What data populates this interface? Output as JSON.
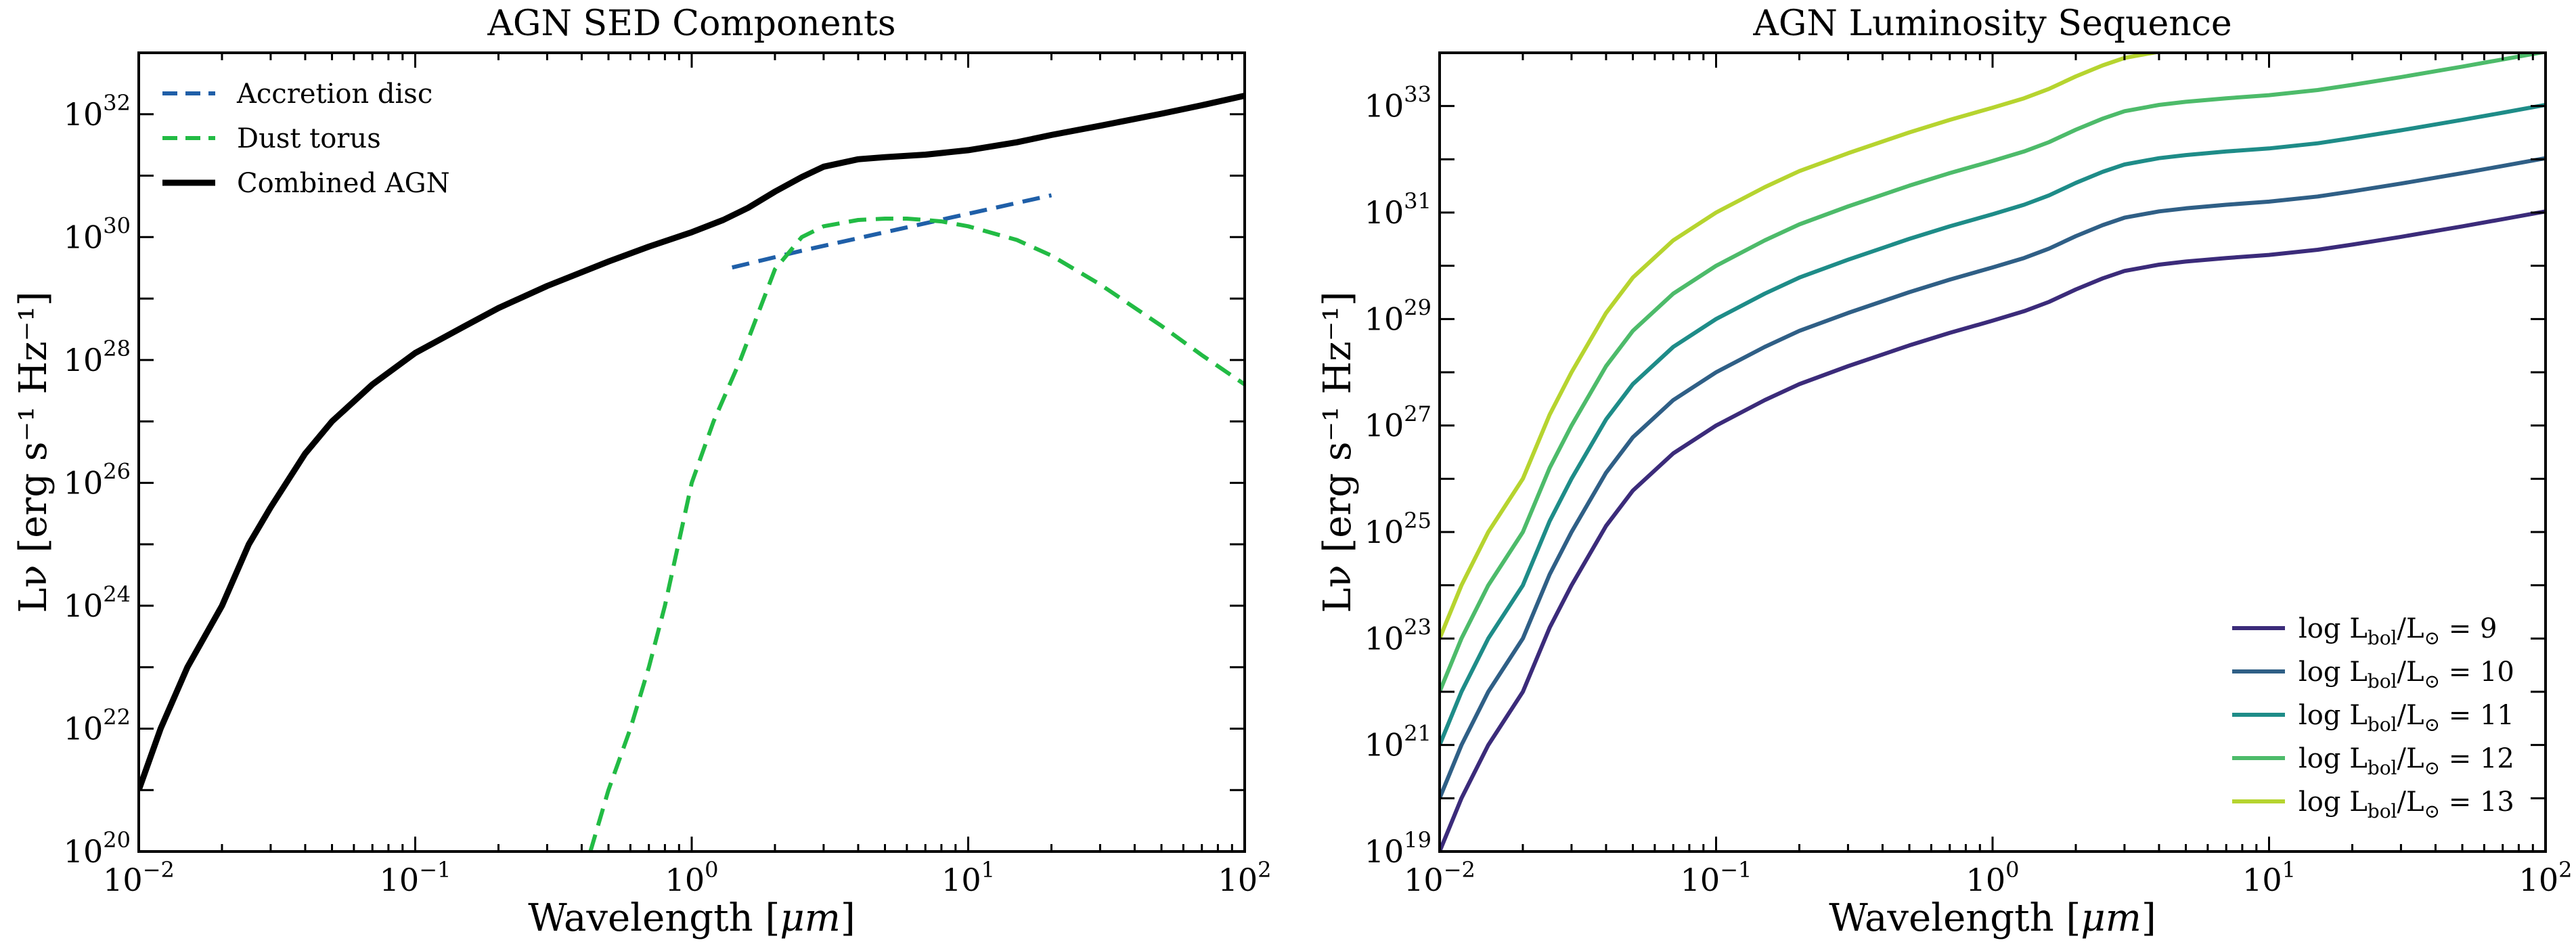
{
  "chart_data": [
    {
      "type": "line",
      "title": "AGN SED Components",
      "xlabel_text": "Wavelength [",
      "xlabel_unit": "μm",
      "xlabel_end": "]",
      "ylabel": "Lν [erg s⁻¹ Hz⁻¹]",
      "xscale": "log",
      "yscale": "log",
      "xlim": [
        0.01,
        100
      ],
      "ylim": [
        1e+20,
        1e+33
      ],
      "x_ticks": [
        {
          "base": "10",
          "exp": "−2"
        },
        {
          "base": "10",
          "exp": "−1"
        },
        {
          "base": "10",
          "exp": "0"
        },
        {
          "base": "10",
          "exp": "1"
        },
        {
          "base": "10",
          "exp": "2"
        }
      ],
      "y_ticks": [
        {
          "base": "10",
          "exp": "20"
        },
        {
          "base": "10",
          "exp": "22"
        },
        {
          "base": "10",
          "exp": "24"
        },
        {
          "base": "10",
          "exp": "26"
        },
        {
          "base": "10",
          "exp": "28"
        },
        {
          "base": "10",
          "exp": "30"
        },
        {
          "base": "10",
          "exp": "32"
        }
      ],
      "legend_position": "upper-left",
      "series": [
        {
          "name": "Accretion disc",
          "style": "dashed",
          "color": "#1f5fa8",
          "x": [
            1.4,
            2.5,
            5,
            10,
            20
          ],
          "y": [
            3.2e+29,
            6e+29,
            1.2e+30,
            2.4e+30,
            4.8e+30
          ]
        },
        {
          "name": "Dust torus",
          "style": "dashed",
          "color": "#22bb44",
          "x": [
            0.43,
            0.5,
            0.6,
            0.7,
            0.8,
            1.0,
            1.2,
            1.5,
            2.0,
            2.5,
            3,
            4,
            5,
            6,
            7,
            8,
            10,
            15,
            20,
            30,
            50,
            70,
            100
          ],
          "y": [
            1e+20,
            1e+21,
            1e+22,
            1e+23,
            1e+24,
            1e+26,
            1e+27,
            1e+28,
            3e+29,
            1e+30,
            1.5e+30,
            1.9e+30,
            2e+30,
            2e+30,
            1.9e+30,
            1.8e+30,
            1.5e+30,
            9e+29,
            5e+29,
            1.7e+29,
            3.6e+28,
            1.2e+28,
            4e+27
          ]
        },
        {
          "name": "Combined AGN",
          "style": "solid",
          "color": "#000000",
          "x": [
            0.01,
            0.012,
            0.015,
            0.02,
            0.025,
            0.03,
            0.04,
            0.05,
            0.07,
            0.1,
            0.15,
            0.2,
            0.3,
            0.5,
            0.7,
            1.0,
            1.3,
            1.6,
            2.0,
            2.5,
            3,
            4,
            5,
            7,
            10,
            15,
            20,
            30,
            50,
            70,
            100
          ],
          "y": [
            1e+21,
            1e+22,
            1e+23,
            1e+24,
            1e+25,
            4e+25,
            3e+26,
            1e+27,
            4e+27,
            1.3e+28,
            3.5e+28,
            7e+28,
            1.6e+29,
            4e+29,
            7e+29,
            1.2e+30,
            1.9e+30,
            3e+30,
            5.5e+30,
            9.5e+30,
            1.4e+31,
            1.85e+31,
            2e+31,
            2.2e+31,
            2.6e+31,
            3.5e+31,
            4.6e+31,
            6.5e+31,
            1.02e+32,
            1.4e+32,
            2e+32
          ]
        }
      ]
    },
    {
      "type": "line",
      "title": "AGN Luminosity Sequence",
      "xlabel_text": "Wavelength [",
      "xlabel_unit": "μm",
      "xlabel_end": "]",
      "ylabel": "Lν [erg s⁻¹ Hz⁻¹]",
      "xscale": "log",
      "yscale": "log",
      "xlim": [
        0.01,
        100
      ],
      "ylim": [
        1e+19,
        1e+34
      ],
      "x_ticks": [
        {
          "base": "10",
          "exp": "−2"
        },
        {
          "base": "10",
          "exp": "−1"
        },
        {
          "base": "10",
          "exp": "0"
        },
        {
          "base": "10",
          "exp": "1"
        },
        {
          "base": "10",
          "exp": "2"
        }
      ],
      "y_ticks": [
        {
          "base": "10",
          "exp": "19"
        },
        {
          "base": "10",
          "exp": "21"
        },
        {
          "base": "10",
          "exp": "23"
        },
        {
          "base": "10",
          "exp": "25"
        },
        {
          "base": "10",
          "exp": "27"
        },
        {
          "base": "10",
          "exp": "29"
        },
        {
          "base": "10",
          "exp": "31"
        },
        {
          "base": "10",
          "exp": "33"
        }
      ],
      "legend_position": "lower-right",
      "legend_prefix": "log L",
      "legend_sub1": "bol",
      "legend_mid": "/L",
      "legend_sub2": "⊙",
      "legend_eq": " = ",
      "base_curve": {
        "x": [
          0.01,
          0.012,
          0.015,
          0.02,
          0.025,
          0.03,
          0.04,
          0.05,
          0.07,
          0.1,
          0.15,
          0.2,
          0.3,
          0.5,
          0.7,
          1.0,
          1.3,
          1.6,
          2.0,
          2.5,
          3,
          4,
          5,
          7,
          10,
          15,
          20,
          30,
          50,
          70,
          100
        ],
        "y": [
          1e+19,
          1e+20,
          1e+21,
          1e+22,
          1.6e+23,
          1e+24,
          1.3e+25,
          6e+25,
          3e+26,
          1e+27,
          3e+27,
          6e+27,
          1.3e+28,
          3.2e+28,
          5.5e+28,
          9.3e+28,
          1.4e+29,
          2.1e+29,
          3.6e+29,
          5.8e+29,
          8e+29,
          1.05e+30,
          1.2e+30,
          1.4e+30,
          1.6e+30,
          2e+30,
          2.5e+30,
          3.5e+30,
          5.5e+30,
          7.5e+30,
          1.05e+31
        ]
      },
      "series": [
        {
          "name": "9",
          "color": "#3b2b7a",
          "scale": 1
        },
        {
          "name": "10",
          "color": "#2f5f86",
          "scale": 10
        },
        {
          "name": "11",
          "color": "#1e8c88",
          "scale": 100
        },
        {
          "name": "12",
          "color": "#4dbb6a",
          "scale": 1000
        },
        {
          "name": "13",
          "color": "#b6d42f",
          "scale": 10000
        }
      ]
    }
  ]
}
